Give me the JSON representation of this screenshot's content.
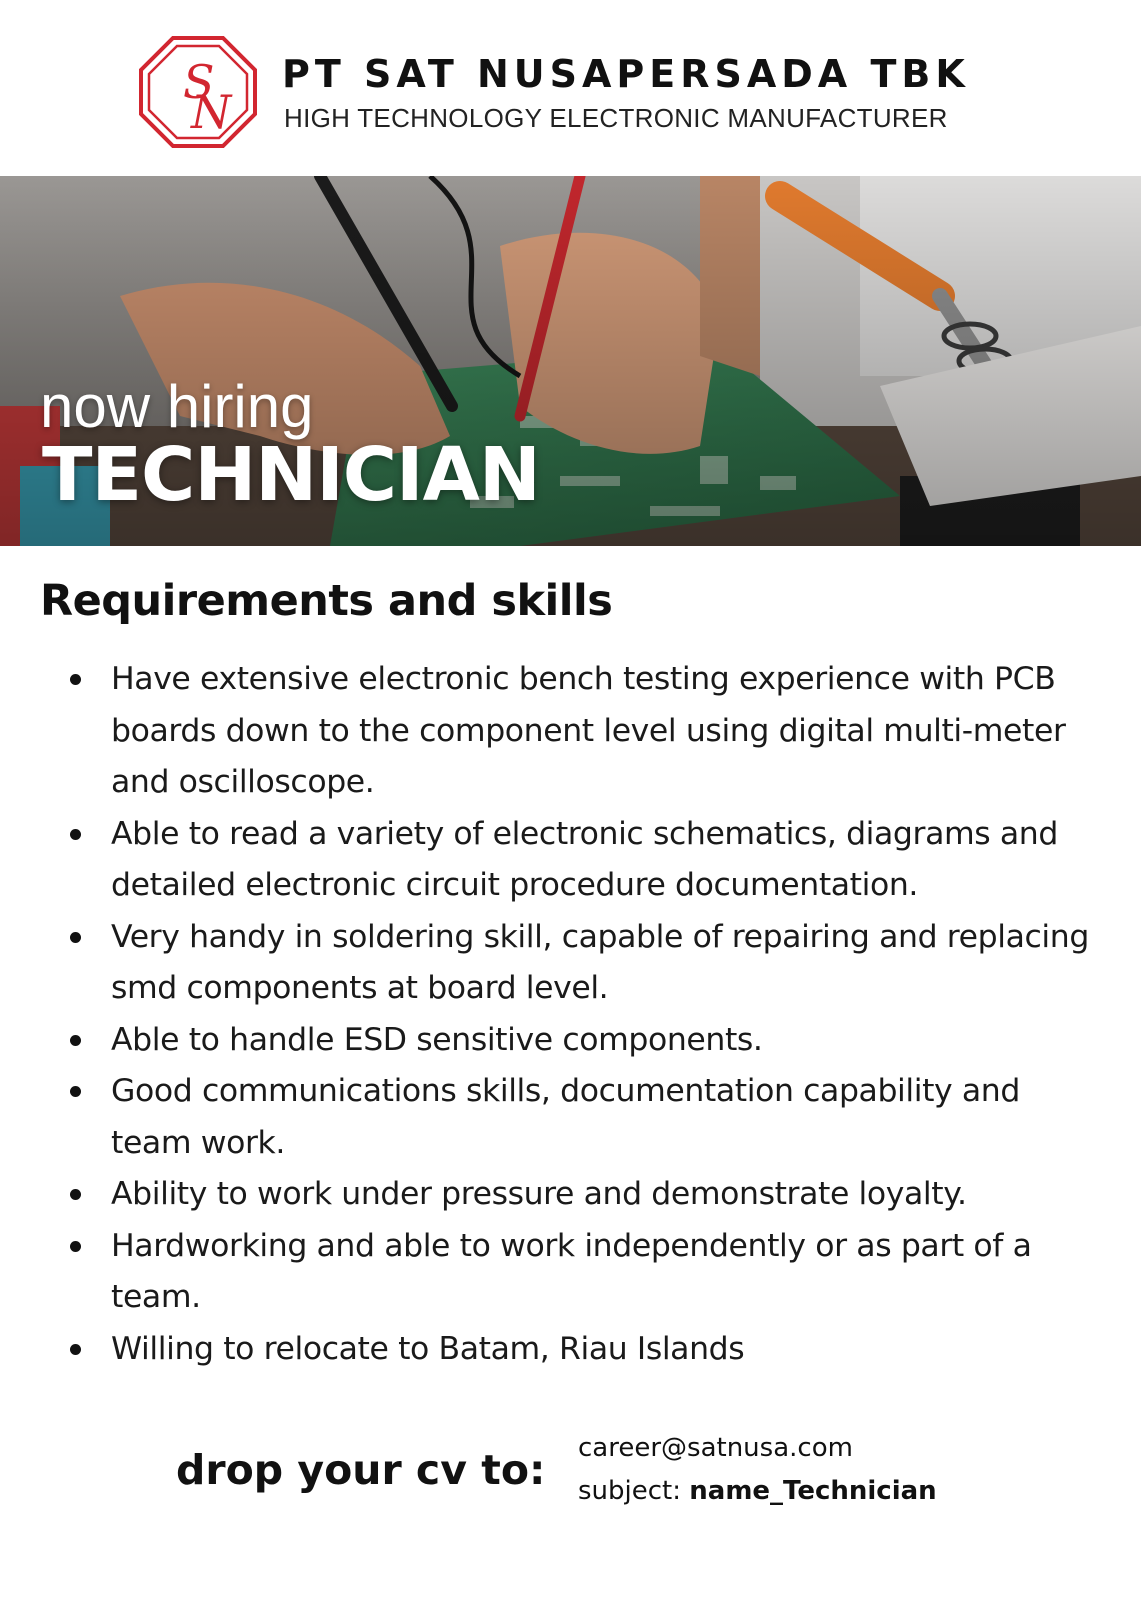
{
  "header": {
    "logo_letters": "SN",
    "company_name": "PT SAT NUSAPERSADA TBK",
    "tagline": "HIGH TECHNOLOGY ELECTRONIC MANUFACTURER",
    "brand_color": "#d22630"
  },
  "hero": {
    "kicker": "now hiring",
    "position": "TECHNICIAN",
    "image_subject": "technician testing a PCB with multimeter probes next to a soldering iron"
  },
  "requirements": {
    "title": "Requirements and skills",
    "items": [
      "Have extensive electronic bench testing experience with PCB boards down to the component level using digital multi-meter and oscilloscope.",
      "Able to read a variety of electronic schematics, diagrams and detailed electronic circuit procedure documentation.",
      "Very handy in soldering skill, capable of repairing and replacing smd components at board level.",
      "Able to handle ESD sensitive components.",
      "Good communications skills, documentation capability and team work.",
      "Ability to work under pressure and demonstrate loyalty.",
      "Hardworking and able to work independently or as part of a team.",
      "Willing to relocate to Batam, Riau Islands"
    ]
  },
  "apply": {
    "label": "drop your cv to:",
    "email": "career@satnusa.com",
    "subject_label": "subject:",
    "subject_value": "name_Technician"
  }
}
